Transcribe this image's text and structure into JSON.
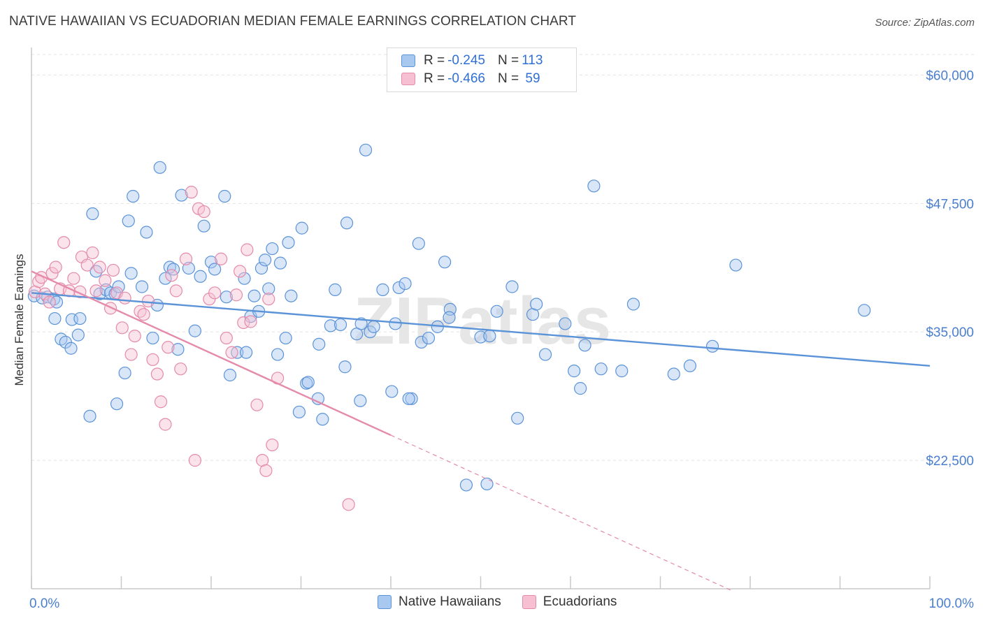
{
  "title": "NATIVE HAWAIIAN VS ECUADORIAN MEDIAN FEMALE EARNINGS CORRELATION CHART",
  "source": "Source: ZipAtlas.com",
  "watermark": "ZIPatlas",
  "legend": {
    "rows": [
      {
        "r_label": "R = ",
        "r_value": "-0.245",
        "n_label": "N = ",
        "n_value": "113",
        "color": "#a9c8ef",
        "border": "#5b93d8"
      },
      {
        "r_label": "R = ",
        "r_value": "-0.466",
        "n_label": "N = ",
        "n_value": " 59",
        "color": "#f6c0d2",
        "border": "#e58aaa"
      }
    ]
  },
  "bottom_legend": [
    {
      "label": "Native Hawaiians",
      "color": "#a9c8ef",
      "border": "#5b93d8"
    },
    {
      "label": "Ecuadorians",
      "color": "#f6c0d2",
      "border": "#e58aaa"
    }
  ],
  "chart_data": {
    "type": "scatter",
    "title": "NATIVE HAWAIIAN VS ECUADORIAN MEDIAN FEMALE EARNINGS CORRELATION CHART",
    "xlabel": "",
    "ylabel": "Median Female Earnings",
    "xlim": [
      0,
      100
    ],
    "ylim": [
      10000,
      62000
    ],
    "x_tick_labels": [
      "0.0%",
      "100.0%"
    ],
    "y_ticks": [
      22500,
      35000,
      47500,
      60000
    ],
    "y_tick_labels": [
      "$22,500",
      "$35,000",
      "$47,500",
      "$60,000"
    ],
    "grid": true,
    "series": [
      {
        "name": "Native Hawaiians",
        "color": "#5b93d8",
        "fill": "#a9c8ef",
        "trend": {
          "x0": 0,
          "y0": 38800,
          "x1": 100,
          "y1": 31700,
          "dash_from": null
        },
        "points": [
          [
            0.3,
            38500
          ],
          [
            1.2,
            38300
          ],
          [
            1.8,
            38400
          ],
          [
            2.5,
            38200
          ],
          [
            2.8,
            37900
          ],
          [
            2.6,
            36300
          ],
          [
            3.3,
            34300
          ],
          [
            3.8,
            34000
          ],
          [
            4.5,
            36200
          ],
          [
            4.4,
            33400
          ],
          [
            5.4,
            36300
          ],
          [
            5.2,
            34700
          ],
          [
            6.5,
            26800
          ],
          [
            6.8,
            46500
          ],
          [
            7.2,
            40900
          ],
          [
            7.6,
            38700
          ],
          [
            8.3,
            39100
          ],
          [
            8.8,
            38800
          ],
          [
            9.3,
            38700
          ],
          [
            9.5,
            28000
          ],
          [
            9.7,
            39400
          ],
          [
            10.4,
            31000
          ],
          [
            11.1,
            40700
          ],
          [
            11.3,
            48200
          ],
          [
            10.8,
            45800
          ],
          [
            12.3,
            39400
          ],
          [
            12.8,
            44700
          ],
          [
            13.5,
            34400
          ],
          [
            14.0,
            37600
          ],
          [
            14.3,
            51000
          ],
          [
            14.9,
            40200
          ],
          [
            15.4,
            41300
          ],
          [
            15.8,
            41100
          ],
          [
            16.3,
            33300
          ],
          [
            16.7,
            48300
          ],
          [
            17.5,
            41200
          ],
          [
            18.2,
            35100
          ],
          [
            18.8,
            40400
          ],
          [
            19.2,
            45300
          ],
          [
            20.0,
            41800
          ],
          [
            20.4,
            41100
          ],
          [
            21.5,
            48200
          ],
          [
            21.7,
            38400
          ],
          [
            22.1,
            30800
          ],
          [
            22.9,
            33000
          ],
          [
            23.7,
            40200
          ],
          [
            23.9,
            33000
          ],
          [
            24.4,
            36500
          ],
          [
            24.8,
            38500
          ],
          [
            25.3,
            37000
          ],
          [
            25.6,
            41200
          ],
          [
            26.0,
            42000
          ],
          [
            26.4,
            39200
          ],
          [
            26.8,
            43100
          ],
          [
            27.4,
            32800
          ],
          [
            27.7,
            41700
          ],
          [
            28.3,
            34400
          ],
          [
            28.6,
            43700
          ],
          [
            28.9,
            38500
          ],
          [
            29.8,
            27200
          ],
          [
            30.1,
            45100
          ],
          [
            30.6,
            30000
          ],
          [
            30.8,
            30100
          ],
          [
            31.9,
            28500
          ],
          [
            32.0,
            33800
          ],
          [
            32.4,
            26500
          ],
          [
            33.3,
            35600
          ],
          [
            33.8,
            39100
          ],
          [
            34.4,
            35700
          ],
          [
            34.9,
            31600
          ],
          [
            35.1,
            45600
          ],
          [
            36.2,
            34800
          ],
          [
            36.6,
            28300
          ],
          [
            36.7,
            35800
          ],
          [
            37.2,
            52700
          ],
          [
            37.7,
            35000
          ],
          [
            38.1,
            35500
          ],
          [
            39.1,
            39100
          ],
          [
            40.1,
            29200
          ],
          [
            40.5,
            35800
          ],
          [
            40.9,
            39300
          ],
          [
            41.6,
            39700
          ],
          [
            42.3,
            28500
          ],
          [
            42.0,
            28500
          ],
          [
            43.1,
            43600
          ],
          [
            43.4,
            34000
          ],
          [
            44.2,
            34400
          ],
          [
            45.2,
            35500
          ],
          [
            46.0,
            41800
          ],
          [
            46.6,
            37200
          ],
          [
            46.5,
            36400
          ],
          [
            48.4,
            20100
          ],
          [
            50.0,
            34500
          ],
          [
            50.7,
            20200
          ],
          [
            51.0,
            34600
          ],
          [
            51.8,
            37000
          ],
          [
            53.5,
            39400
          ],
          [
            54.1,
            26600
          ],
          [
            55.8,
            36700
          ],
          [
            56.2,
            37700
          ],
          [
            57.2,
            32800
          ],
          [
            59.4,
            35800
          ],
          [
            60.4,
            31200
          ],
          [
            61.1,
            29500
          ],
          [
            61.6,
            33700
          ],
          [
            62.6,
            49200
          ],
          [
            63.4,
            31400
          ],
          [
            65.7,
            31200
          ],
          [
            67.0,
            37700
          ],
          [
            71.5,
            30900
          ],
          [
            73.3,
            31700
          ],
          [
            75.8,
            33600
          ],
          [
            78.4,
            41500
          ],
          [
            92.7,
            37100
          ]
        ]
      },
      {
        "name": "Ecuadorians",
        "color": "#e58aaa",
        "fill": "#f6c0d2",
        "trend": {
          "x0": 0,
          "y0": 40900,
          "x1": 78,
          "y1": 9800,
          "dash_from": 40.0
        },
        "points": [
          [
            0.4,
            38900
          ],
          [
            0.8,
            39900
          ],
          [
            1.1,
            40300
          ],
          [
            1.5,
            38700
          ],
          [
            2.0,
            37900
          ],
          [
            2.3,
            40700
          ],
          [
            2.7,
            41300
          ],
          [
            3.2,
            39200
          ],
          [
            3.6,
            43700
          ],
          [
            4.2,
            39000
          ],
          [
            4.7,
            40200
          ],
          [
            5.4,
            38900
          ],
          [
            5.6,
            42300
          ],
          [
            6.2,
            41500
          ],
          [
            6.8,
            42700
          ],
          [
            7.2,
            39000
          ],
          [
            7.6,
            41300
          ],
          [
            8.2,
            40000
          ],
          [
            8.8,
            37300
          ],
          [
            9.1,
            41000
          ],
          [
            9.5,
            38800
          ],
          [
            10.1,
            35400
          ],
          [
            10.4,
            38300
          ],
          [
            11.1,
            32800
          ],
          [
            11.5,
            34600
          ],
          [
            12.1,
            37000
          ],
          [
            12.5,
            36700
          ],
          [
            13.0,
            38000
          ],
          [
            13.5,
            32300
          ],
          [
            14.0,
            30900
          ],
          [
            14.4,
            28200
          ],
          [
            14.9,
            26000
          ],
          [
            15.2,
            33500
          ],
          [
            15.6,
            40500
          ],
          [
            16.1,
            39000
          ],
          [
            16.6,
            31400
          ],
          [
            17.2,
            42100
          ],
          [
            17.8,
            48600
          ],
          [
            18.2,
            22500
          ],
          [
            18.6,
            47000
          ],
          [
            19.2,
            46700
          ],
          [
            19.8,
            38200
          ],
          [
            20.4,
            38800
          ],
          [
            21.1,
            42100
          ],
          [
            21.7,
            34400
          ],
          [
            22.3,
            33000
          ],
          [
            22.8,
            38600
          ],
          [
            23.2,
            40900
          ],
          [
            23.6,
            35900
          ],
          [
            24.0,
            43000
          ],
          [
            24.4,
            36000
          ],
          [
            25.1,
            27900
          ],
          [
            25.7,
            22500
          ],
          [
            26.1,
            21500
          ],
          [
            26.4,
            38200
          ],
          [
            26.8,
            24000
          ],
          [
            27.4,
            30500
          ],
          [
            35.3,
            18200
          ]
        ]
      }
    ]
  }
}
